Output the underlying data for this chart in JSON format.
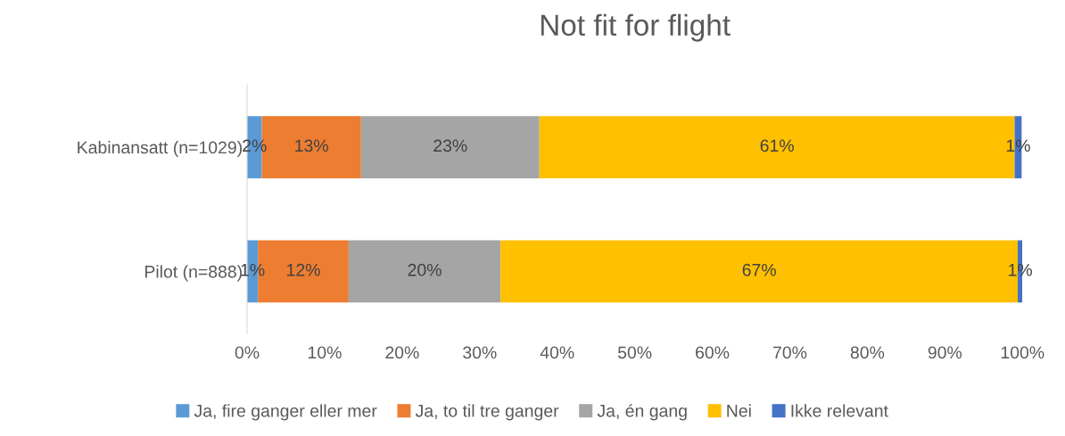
{
  "chart_data": {
    "type": "bar",
    "title": "Not fit for flight",
    "orientation": "horizontal",
    "stacked": true,
    "categories": [
      "Kabinansatt (n=1029)",
      "Pilot (n=888)"
    ],
    "series": [
      {
        "name": "Ja, fire ganger eller mer",
        "color": "#5b9bd5",
        "values": [
          1.9,
          1.4
        ],
        "value_labels": [
          "2%",
          "1%"
        ]
      },
      {
        "name": "Ja, to til tre ganger",
        "color": "#ed7d31",
        "values": [
          12.8,
          11.7
        ],
        "value_labels": [
          "13%",
          "12%"
        ]
      },
      {
        "name": "Ja, én gang",
        "color": "#a5a5a5",
        "values": [
          23.0,
          19.6
        ],
        "value_labels": [
          "23%",
          "20%"
        ]
      },
      {
        "name": "Nei",
        "color": "#ffc000",
        "values": [
          61.3,
          66.7
        ],
        "value_labels": [
          "61%",
          "67%"
        ]
      },
      {
        "name": "Ikke relevant",
        "color": "#4472c4",
        "values": [
          0.9,
          0.6
        ],
        "value_labels": [
          "1%",
          "1%"
        ]
      }
    ],
    "xlim": [
      0,
      100
    ],
    "xticks": [
      {
        "value": 0,
        "label": "0%"
      },
      {
        "value": 10,
        "label": "10%"
      },
      {
        "value": 20,
        "label": "20%"
      },
      {
        "value": 30,
        "label": "30%"
      },
      {
        "value": 40,
        "label": "40%"
      },
      {
        "value": 50,
        "label": "50%"
      },
      {
        "value": 60,
        "label": "60%"
      },
      {
        "value": 70,
        "label": "70%"
      },
      {
        "value": 80,
        "label": "80%"
      },
      {
        "value": 90,
        "label": "90%"
      },
      {
        "value": 100,
        "label": "100%"
      }
    ],
    "grid": false,
    "legend": "bottom"
  }
}
